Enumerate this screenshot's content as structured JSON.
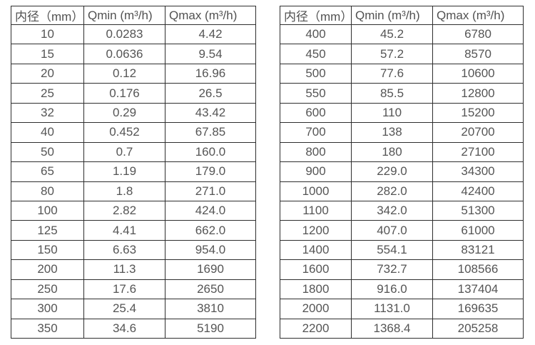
{
  "colors": {
    "background": "#ffffff",
    "border": "#2e2e2e",
    "text": "#555555"
  },
  "tables": [
    {
      "name": "small-diameter-flow-ranges",
      "headers": [
        "内径（mm）",
        "Qmin (m³/h)",
        "Qmax (m³/h)"
      ],
      "rows": [
        [
          "10",
          "0.0283",
          "4.42"
        ],
        [
          "15",
          "0.0636",
          "9.54"
        ],
        [
          "20",
          "0.12",
          "16.96"
        ],
        [
          "25",
          "0.176",
          "26.5"
        ],
        [
          "32",
          "0.29",
          "43.42"
        ],
        [
          "40",
          "0.452",
          "67.85"
        ],
        [
          "50",
          "0.7",
          "160.0"
        ],
        [
          "65",
          "1.19",
          "179.0"
        ],
        [
          "80",
          "1.8",
          "271.0"
        ],
        [
          "100",
          "2.82",
          "424.0"
        ],
        [
          "125",
          "4.41",
          "662.0"
        ],
        [
          "150",
          "6.63",
          "954.0"
        ],
        [
          "200",
          "11.3",
          "1690"
        ],
        [
          "250",
          "17.6",
          "2650"
        ],
        [
          "300",
          "25.4",
          "3810"
        ],
        [
          "350",
          "34.6",
          "5190"
        ]
      ]
    },
    {
      "name": "large-diameter-flow-ranges",
      "headers": [
        "内径（mm）",
        "Qmin (m³/h)",
        "Qmax (m³/h)"
      ],
      "rows": [
        [
          "400",
          "45.2",
          "6780"
        ],
        [
          "450",
          "57.2",
          "8570"
        ],
        [
          "500",
          "77.6",
          "10600"
        ],
        [
          "550",
          "85.5",
          "12800"
        ],
        [
          "600",
          "110",
          "15200"
        ],
        [
          "700",
          "138",
          "20700"
        ],
        [
          "800",
          "180",
          "27100"
        ],
        [
          "900",
          "229.0",
          "34300"
        ],
        [
          "1000",
          "282.0",
          "42400"
        ],
        [
          "1100",
          "342.0",
          "51300"
        ],
        [
          "1200",
          "407.0",
          "61000"
        ],
        [
          "1400",
          "554.1",
          "83121"
        ],
        [
          "1600",
          "732.7",
          "108566"
        ],
        [
          "1800",
          "916.0",
          "137404"
        ],
        [
          "2000",
          "1131.0",
          "169635"
        ],
        [
          "2200",
          "1368.4",
          "205258"
        ]
      ]
    }
  ]
}
